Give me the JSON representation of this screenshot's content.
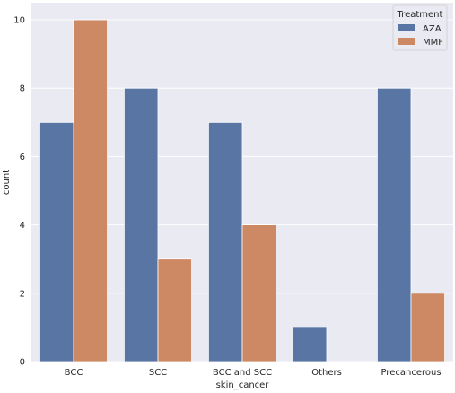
{
  "chart_data": {
    "type": "bar",
    "title": "",
    "xlabel": "skin_cancer",
    "ylabel": "count",
    "categories": [
      "BCC",
      "SCC",
      "BCC and SCC",
      "Others",
      "Precancerous"
    ],
    "series": [
      {
        "name": "AZA",
        "values": [
          7,
          8,
          7,
          1,
          8
        ],
        "color": "#5875a4"
      },
      {
        "name": "MMF",
        "values": [
          10,
          3,
          4,
          0,
          2
        ],
        "color": "#cc8963"
      }
    ],
    "ylim": [
      0,
      10.5
    ],
    "yticks": [
      0,
      2,
      4,
      6,
      8,
      10
    ],
    "grid": true,
    "legend": {
      "title": "Treatment",
      "placement": "top-right"
    },
    "style": {
      "background": "#eaeaf2",
      "grid_color": "#ffffff"
    }
  }
}
